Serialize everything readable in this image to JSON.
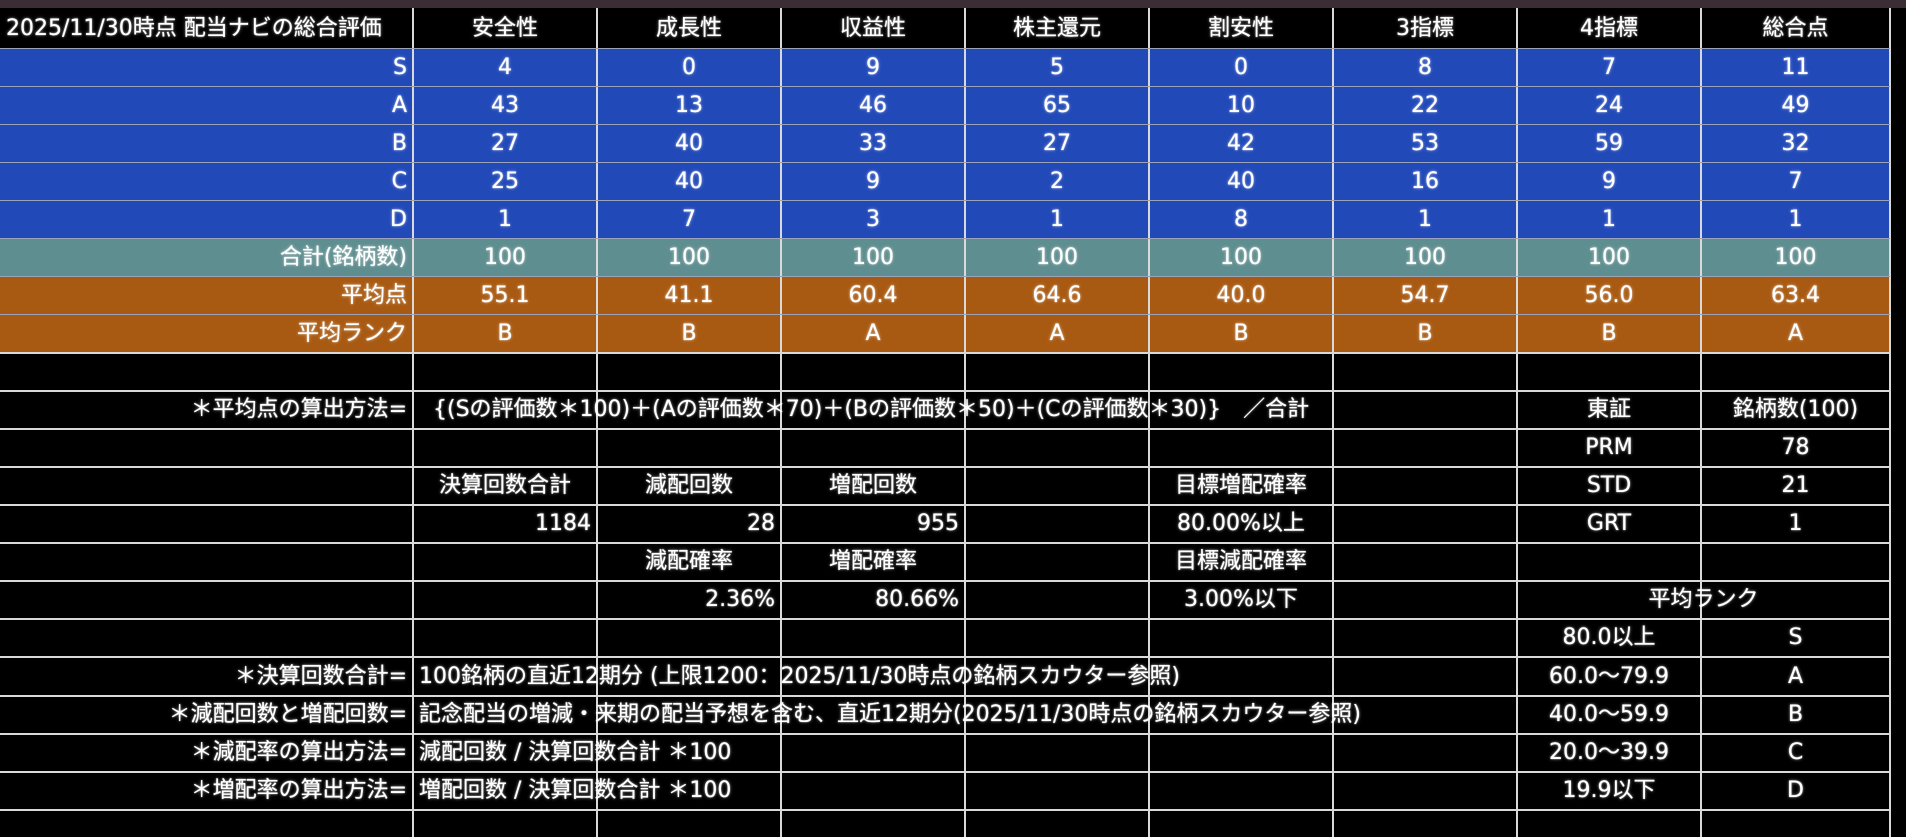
{
  "header": {
    "title": "2025/11/30時点 配当ナビの総合評価",
    "columns": [
      "安全性",
      "成長性",
      "収益性",
      "株主還元",
      "割安性",
      "3指標",
      "4指標",
      "総合点"
    ]
  },
  "rank_rows": [
    {
      "label": "S",
      "values": [
        "4",
        "0",
        "9",
        "5",
        "0",
        "8",
        "7",
        "11"
      ]
    },
    {
      "label": "A",
      "values": [
        "43",
        "13",
        "46",
        "65",
        "10",
        "22",
        "24",
        "49"
      ]
    },
    {
      "label": "B",
      "values": [
        "27",
        "40",
        "33",
        "27",
        "42",
        "53",
        "59",
        "32"
      ]
    },
    {
      "label": "C",
      "values": [
        "25",
        "40",
        "9",
        "2",
        "40",
        "16",
        "9",
        "7"
      ]
    },
    {
      "label": "D",
      "values": [
        "1",
        "7",
        "3",
        "1",
        "8",
        "1",
        "1",
        "1"
      ]
    }
  ],
  "total_row": {
    "label": "合計(銘柄数)",
    "values": [
      "100",
      "100",
      "100",
      "100",
      "100",
      "100",
      "100",
      "100"
    ]
  },
  "average_row": {
    "label": "平均点",
    "values": [
      "55.1",
      "41.1",
      "60.4",
      "64.6",
      "40.0",
      "54.7",
      "56.0",
      "63.4"
    ]
  },
  "rank_avg_row": {
    "label": "平均ランク",
    "values": [
      "B",
      "B",
      "A",
      "A",
      "B",
      "B",
      "B",
      "A"
    ]
  },
  "formula": {
    "label": "＊平均点の算出方法=",
    "text": "{(Sの評価数＊100)＋(Aの評価数＊70)＋(Bの評価数＊50)＋(Cの評価数＊30)}　／合計"
  },
  "dividend": {
    "settlement_total_label": "決算回数合計",
    "cut_count_label": "減配回数",
    "raise_count_label": "増配回数",
    "settlement_total": "1184",
    "cut_count": "28",
    "raise_count": "955",
    "cut_rate_label": "減配確率",
    "raise_rate_label": "増配確率",
    "cut_rate": "2.36%",
    "raise_rate": "80.66%",
    "target_raise_label": "目標増配確率",
    "target_raise": "80.00%以上",
    "target_cut_label": "目標減配確率",
    "target_cut": "3.00%以下"
  },
  "market": {
    "header_left": "東証",
    "header_right": "銘柄数(100)",
    "rows": [
      {
        "name": "PRM",
        "count": "78"
      },
      {
        "name": "STD",
        "count": "21"
      },
      {
        "name": "GRT",
        "count": "1"
      }
    ]
  },
  "rank_scale": {
    "title": "平均ランク",
    "rows": [
      {
        "range": "80.0以上",
        "rank": "S"
      },
      {
        "range": "60.0〜79.9",
        "rank": "A"
      },
      {
        "range": "40.0〜59.9",
        "rank": "B"
      },
      {
        "range": "20.0〜39.9",
        "rank": "C"
      },
      {
        "range": "19.9以下",
        "rank": "D"
      }
    ]
  },
  "notes": [
    {
      "label": "＊決算回数合計=",
      "text": "100銘柄の直近12期分 (上限1200：2025/11/30時点の銘柄スカウター参照)"
    },
    {
      "label": "＊減配回数と増配回数=",
      "text": "記念配当の増減・来期の配当予想を含む、直近12期分(2025/11/30時点の銘柄スカウター参照)"
    },
    {
      "label": "＊減配率の算出方法=",
      "text": "減配回数 / 決算回数合計 ＊100"
    },
    {
      "label": "＊増配率の算出方法=",
      "text": "増配回数 / 決算回数合計 ＊100"
    }
  ],
  "colors": {
    "rank_band": "#2149b8",
    "total_band": "#5f8e90",
    "average_band": "#a95a12",
    "background": "#000000"
  }
}
